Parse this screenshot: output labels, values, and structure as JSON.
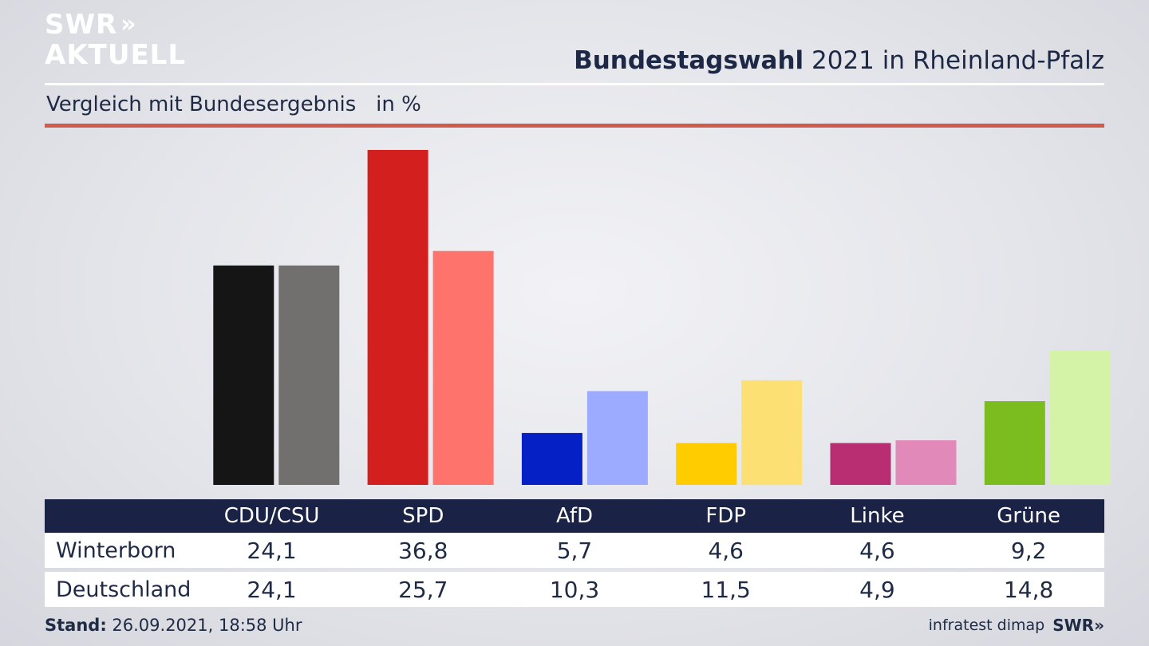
{
  "branding": {
    "logo_line1": "SWR",
    "logo_arrows": "»",
    "logo_line2": "AKTUELL",
    "footer_logo": "SWR»"
  },
  "header": {
    "title_bold": "Bundestagswahl",
    "title_rest": " 2021 in Rheinland-Pfalz",
    "subtitle": "Vergleich mit Bundesergebnis   in %"
  },
  "footer": {
    "stand_label": "Stand:",
    "stand_value": " 26.09.2021, 18:58 Uhr",
    "source": "infratest dimap"
  },
  "table": {
    "header_label": "",
    "rows": [
      {
        "label": "Winterborn",
        "values": [
          "24,1",
          "36,8",
          "5,7",
          "4,6",
          "4,6",
          "9,2"
        ]
      },
      {
        "label": "Deutschland",
        "values": [
          "24,1",
          "25,7",
          "10,3",
          "11,5",
          "4,9",
          "14,8"
        ]
      }
    ]
  },
  "chart_data": {
    "type": "bar",
    "title": "Bundestagswahl 2021 in Rheinland-Pfalz",
    "subtitle": "Vergleich mit Bundesergebnis   in %",
    "categories": [
      "CDU/CSU",
      "SPD",
      "AfD",
      "FDP",
      "Linke",
      "Grüne"
    ],
    "series": [
      {
        "name": "Winterborn",
        "values": [
          24.1,
          36.8,
          5.7,
          4.6,
          4.6,
          9.2
        ],
        "colors": [
          "#151515",
          "#d41f1f",
          "#0520c4",
          "#ffcc00",
          "#b92d72",
          "#7bbd1f"
        ]
      },
      {
        "name": "Deutschland",
        "values": [
          24.1,
          25.7,
          10.3,
          11.5,
          4.9,
          14.8
        ],
        "colors": [
          "#72706e",
          "#ff736d",
          "#9cabff",
          "#fde074",
          "#e189b8",
          "#d4f3a6"
        ]
      }
    ],
    "ylim": [
      0,
      36.8
    ],
    "grid": false,
    "legend": "table-below"
  }
}
